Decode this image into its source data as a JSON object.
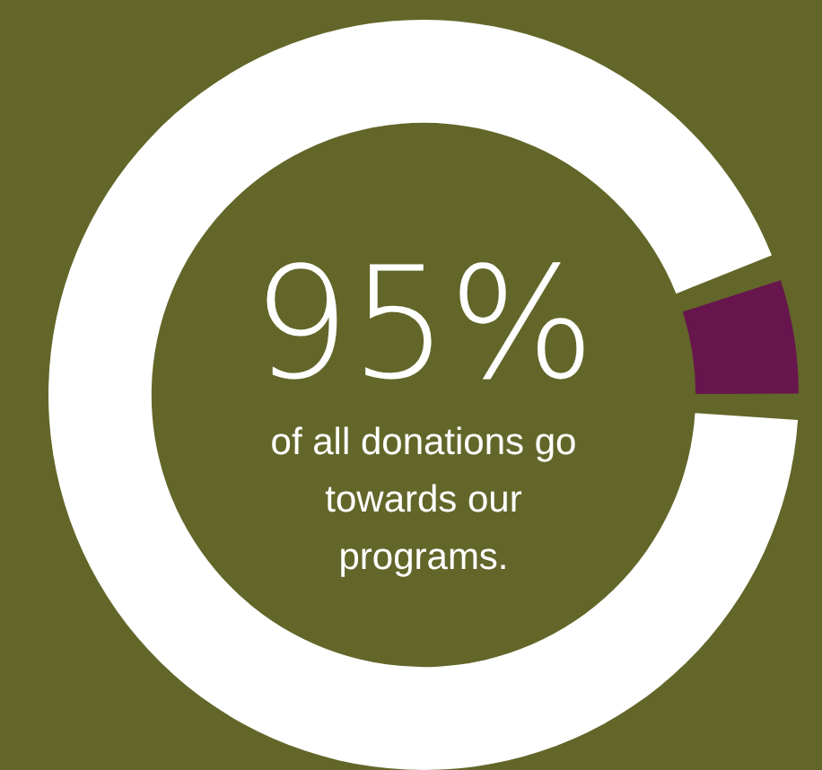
{
  "chart_data": {
    "type": "donut",
    "categories": [
      null,
      null
    ],
    "values": [
      95,
      5
    ],
    "colors": [
      "#ffffff",
      "#66164d"
    ],
    "value_labels": [
      "95%",
      null
    ],
    "annotations": [
      "of all donations go towards our programs."
    ],
    "legend": false
  }
}
